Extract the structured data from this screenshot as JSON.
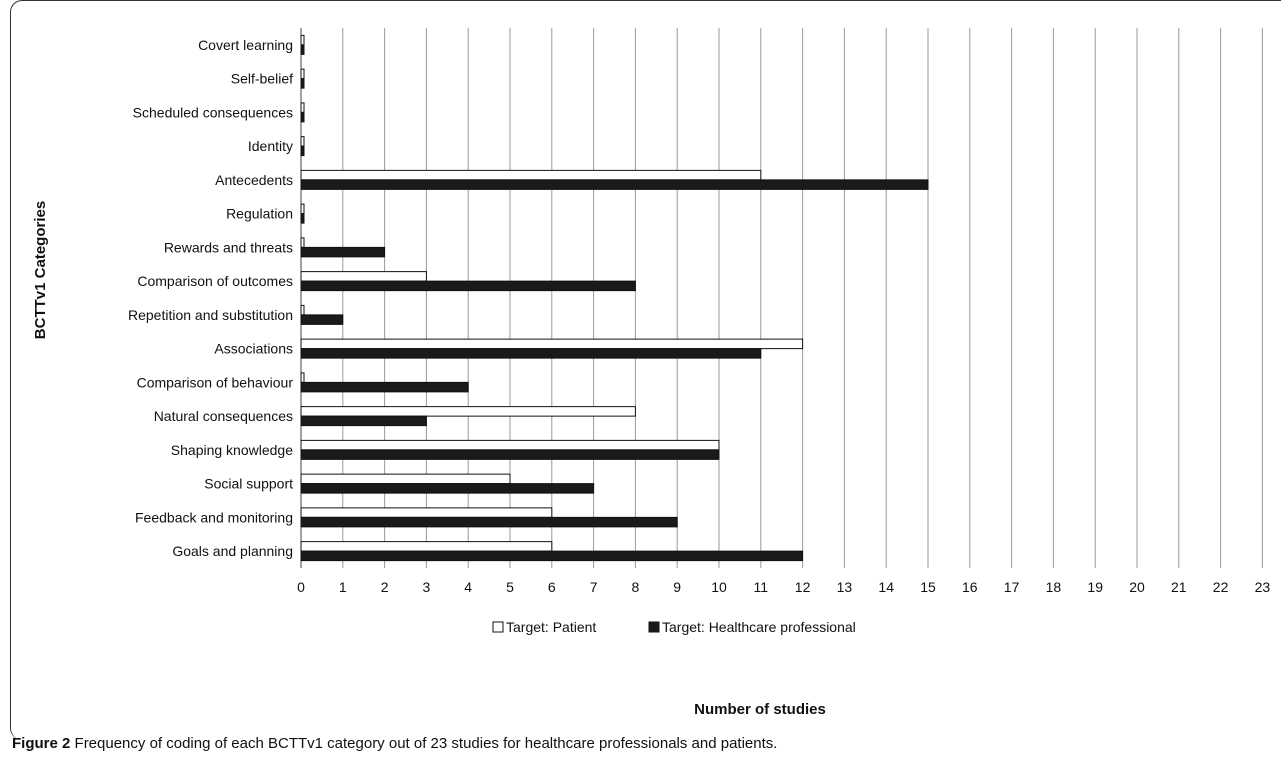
{
  "chart_data": {
    "type": "bar",
    "orientation": "horizontal",
    "ylabel": "BCTTv1 Categories",
    "xlabel": "Number of studies",
    "xlim": [
      0,
      23
    ],
    "x_ticks": [
      "0",
      "1",
      "2",
      "3",
      "4",
      "5",
      "6",
      "7",
      "8",
      "9",
      "10",
      "11",
      "12",
      "13",
      "14",
      "15",
      "16",
      "17",
      "18",
      "19",
      "20",
      "21",
      "22",
      "23"
    ],
    "grid": "vertical",
    "legend_position": "bottom",
    "categories": [
      "Covert learning",
      "Self-belief",
      "Scheduled consequences",
      "Identity",
      "Antecedents",
      "Regulation",
      "Rewards and threats",
      "Comparison of outcomes",
      "Repetition and substitution",
      "Associations",
      "Comparison of behaviour",
      "Natural consequences",
      "Shaping knowledge",
      "Social support",
      "Feedback and monitoring",
      "Goals and planning"
    ],
    "series": [
      {
        "name": "Target: Patient",
        "color": "#ffffff",
        "values": [
          0,
          0,
          0,
          0,
          11,
          0,
          0,
          3,
          0,
          12,
          0,
          8,
          10,
          5,
          6,
          6
        ]
      },
      {
        "name": "Target: Healthcare professional",
        "color": "#1a1a1a",
        "values": [
          0,
          0,
          0,
          0,
          15,
          0,
          2,
          8,
          1,
          11,
          4,
          3,
          10,
          7,
          9,
          12
        ]
      }
    ]
  },
  "caption": {
    "figure_label": "Figure 2",
    "text": " Frequency of coding of each BCTTv1 category out of 23 studies for healthcare professionals and patients."
  }
}
